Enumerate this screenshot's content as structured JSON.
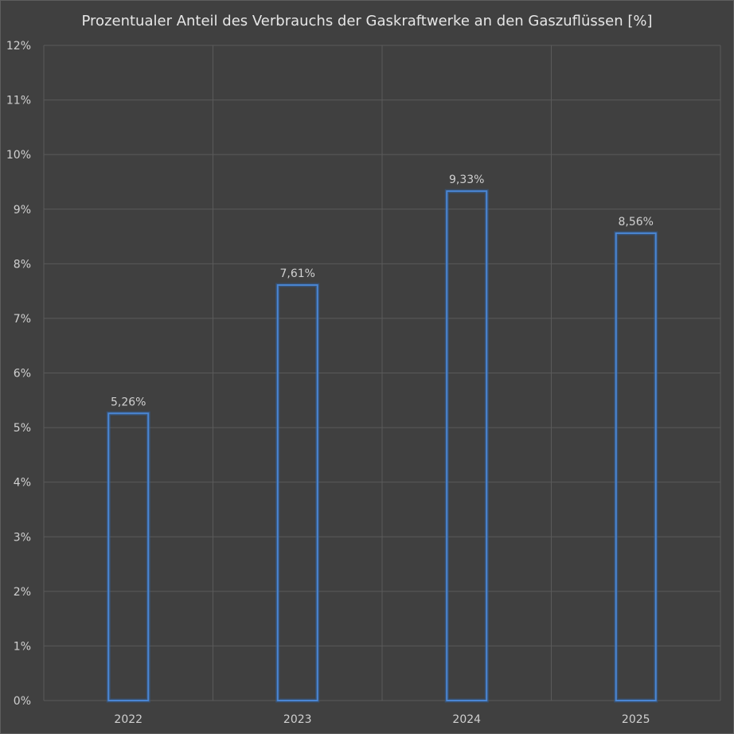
{
  "chart_data": {
    "type": "bar",
    "title": "Prozentualer Anteil des Verbrauchs der Gaskraftwerke an den Gaszuflüssen [%]",
    "categories": [
      "2022",
      "2023",
      "2024",
      "2025"
    ],
    "values": [
      5.26,
      7.61,
      9.33,
      8.56
    ],
    "data_labels": [
      "5,26%",
      "7,61%",
      "9,33%",
      "8,56%"
    ],
    "xlabel": "",
    "ylabel": "",
    "ylim": [
      0,
      12
    ],
    "yticks": [
      "0%",
      "1%",
      "2%",
      "3%",
      "4%",
      "5%",
      "6%",
      "7%",
      "8%",
      "9%",
      "10%",
      "11%",
      "12%"
    ],
    "grid": true,
    "legend": "none",
    "colors": {
      "background": "#404040",
      "bar_outline": "#4a86d4",
      "grid": "#5a5a5a",
      "text": "#d0d0d0"
    }
  }
}
